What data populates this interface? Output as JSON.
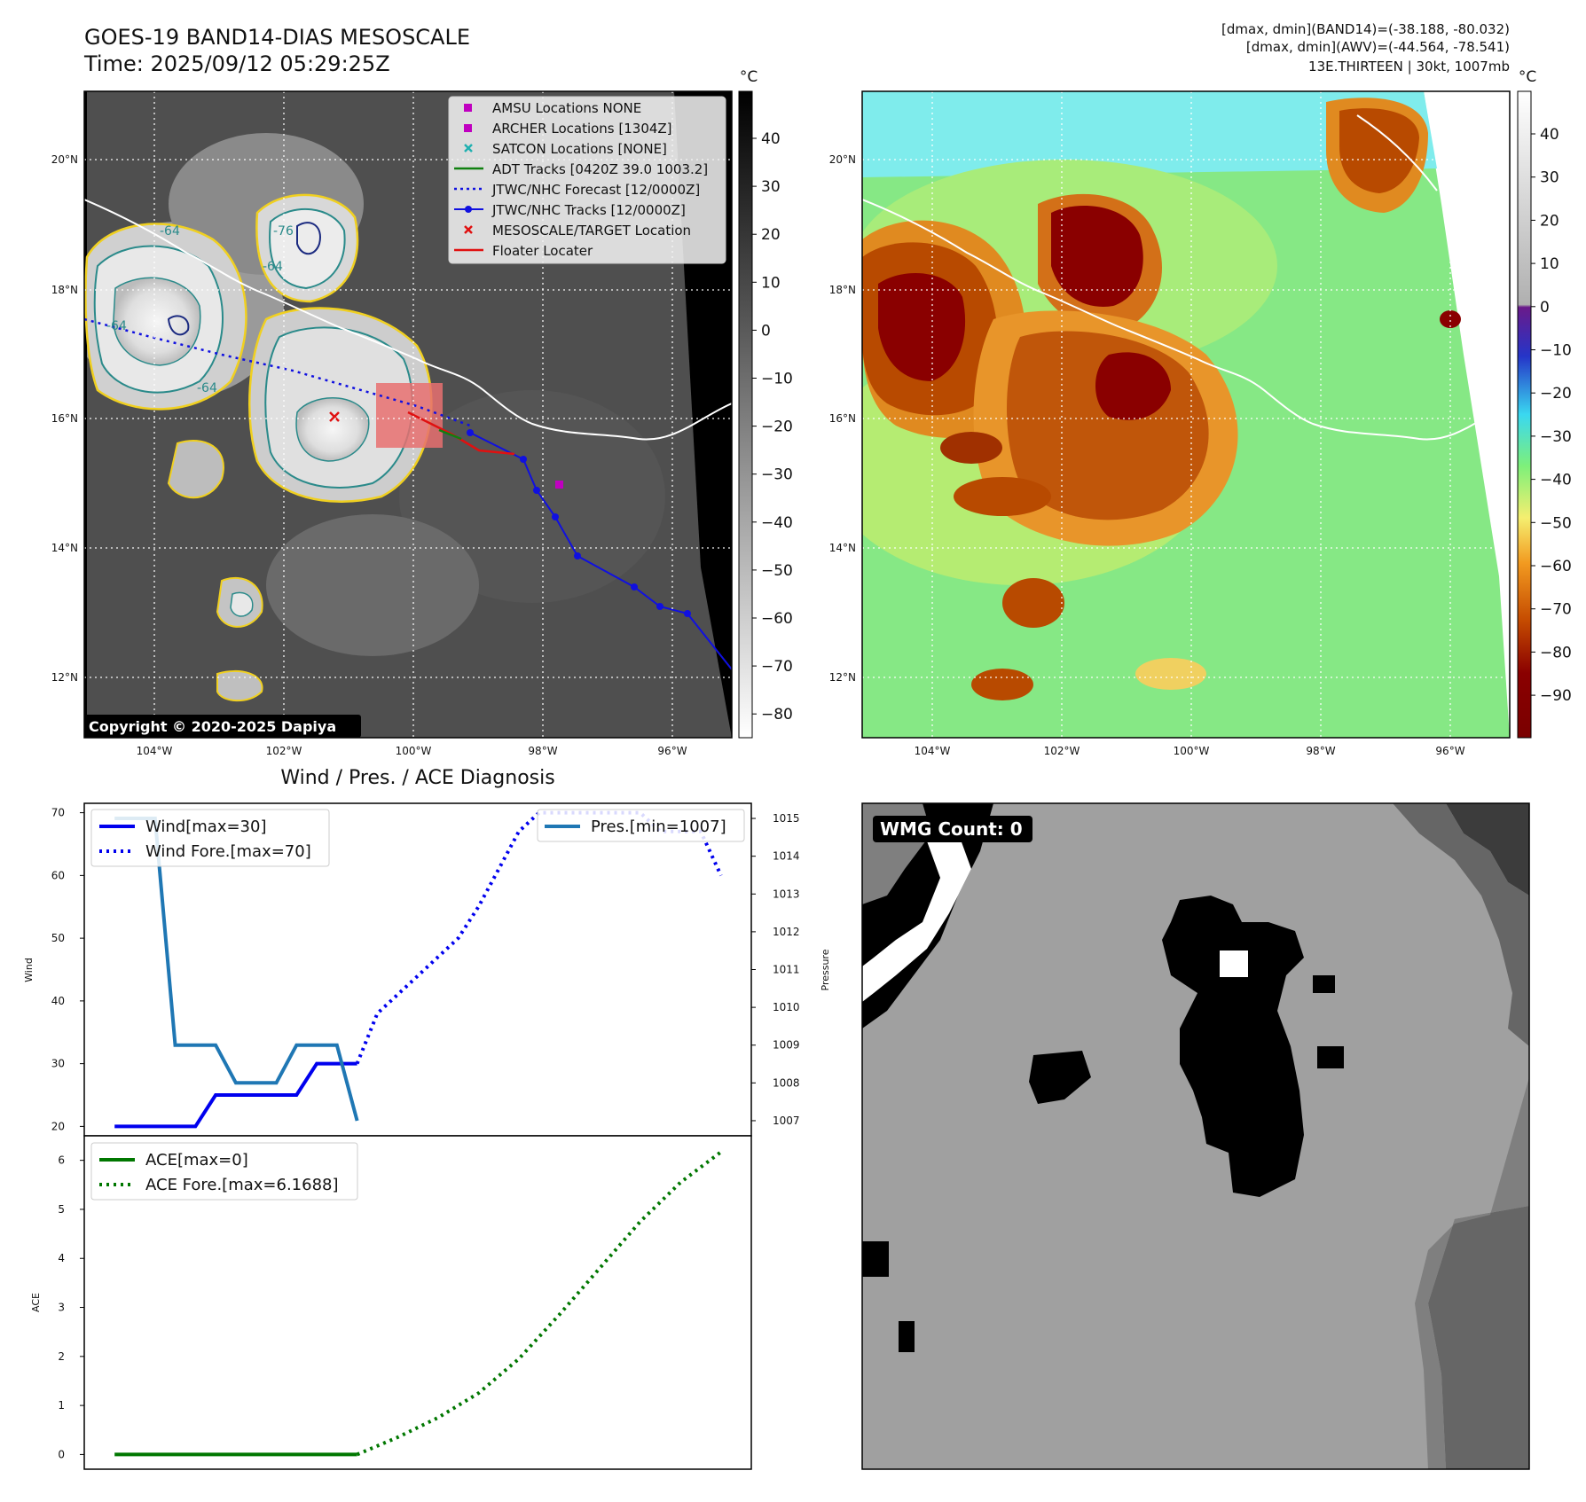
{
  "header": {
    "title": "GOES-19 BAND14-DIAS MESOSCALE",
    "time": "Time: 2025/09/12 05:29:25Z",
    "band_range": "[dmax, dmin](BAND14)=(-38.188, -80.032)",
    "awv_range": "[dmax, dmin](AWV)=(-44.564, -78.541)",
    "storm_info": "13E.THIRTEEN | 30kt, 1007mb"
  },
  "map_axes": {
    "lat_ticks": [
      "20°N",
      "18°N",
      "16°N",
      "14°N",
      "12°N"
    ],
    "lon_ticks": [
      "104°W",
      "102°W",
      "100°W",
      "98°W",
      "96°W"
    ]
  },
  "colorbar_left": {
    "unit": "°C",
    "ticks": [
      "40",
      "30",
      "20",
      "10",
      "0",
      "−10",
      "−20",
      "−30",
      "−40",
      "−50",
      "−60",
      "−70",
      "−80"
    ]
  },
  "colorbar_right": {
    "unit": "°C",
    "ticks": [
      "40",
      "30",
      "20",
      "10",
      "0",
      "−10",
      "−20",
      "−30",
      "−40",
      "−50",
      "−60",
      "−70",
      "−80",
      "−90"
    ]
  },
  "map_legend": {
    "items": [
      {
        "label": "AMSU Locations NONE",
        "color": "#c000c0",
        "marker": "square"
      },
      {
        "label": "ARCHER Locations [1304Z]",
        "color": "#c000c0",
        "marker": "square"
      },
      {
        "label": "SATCON Locations [NONE]",
        "color": "#20b0b0",
        "marker": "x"
      },
      {
        "label": "ADT Tracks [0420Z 39.0 1003.2]",
        "color": "#108010",
        "marker": "line"
      },
      {
        "label": "JTWC/NHC Forecast [12/0000Z]",
        "color": "#1010e0",
        "marker": "dotted"
      },
      {
        "label": "JTWC/NHC Tracks [12/0000Z]",
        "color": "#1010e0",
        "marker": "line-dot"
      },
      {
        "label": "MESOSCALE/TARGET Location",
        "color": "#e01010",
        "marker": "x"
      },
      {
        "label": "Floater Locater",
        "color": "#e01010",
        "marker": "line"
      }
    ]
  },
  "contour_labels": [
    "-64",
    "-64",
    "-64",
    "-76",
    "-64"
  ],
  "copyright": "Copyright © 2020-2025 Dapiya",
  "wmg_label": "WMG Count: 0",
  "chart_data": [
    {
      "type": "line",
      "title": "Wind / Pres. / ACE Diagnosis",
      "ylabel": "Wind",
      "ylabel_right": "Pressure",
      "ylim": [
        18.5,
        71.5
      ],
      "ylim_right": [
        1006.6,
        1015.4
      ],
      "yticks": [
        20,
        30,
        40,
        50,
        60,
        70
      ],
      "yticks_right": [
        1007,
        1008,
        1009,
        1010,
        1011,
        1012,
        1013,
        1014,
        1015
      ],
      "x": [
        0,
        1,
        2,
        3,
        4,
        5,
        6,
        7,
        8,
        9,
        10,
        11,
        12,
        13,
        14,
        15,
        16,
        17,
        18,
        19,
        20,
        21,
        22,
        23,
        24,
        25,
        26,
        27,
        28,
        29,
        30
      ],
      "xlim": [
        -1.5,
        31.5
      ],
      "series": [
        {
          "name": "Wind[max=30]",
          "axis": "left",
          "style": "solid",
          "color": "#0000ee",
          "x": [
            0,
            1,
            2,
            3,
            4,
            5,
            6,
            7,
            8,
            9,
            10,
            11,
            12
          ],
          "values": [
            20,
            20,
            20,
            20,
            20,
            25,
            25,
            25,
            25,
            25,
            30,
            30,
            30
          ]
        },
        {
          "name": "Wind Fore.[max=70]",
          "axis": "left",
          "style": "dotted",
          "color": "#0000ee",
          "x": [
            12,
            13,
            14,
            15,
            16,
            17,
            18,
            19,
            20,
            21,
            22,
            23,
            24,
            25,
            26,
            27,
            28,
            29,
            30
          ],
          "values": [
            30,
            38,
            41,
            44,
            47,
            50,
            55,
            61,
            67,
            70,
            70,
            70,
            70,
            70,
            70,
            67,
            67,
            67,
            60
          ]
        },
        {
          "name": "Pres.[min=1007]",
          "axis": "right",
          "style": "solid",
          "color": "#1f77b4",
          "x": [
            0,
            1,
            2,
            3,
            4,
            5,
            6,
            7,
            8,
            9,
            10,
            11,
            12
          ],
          "values": [
            1015,
            1015,
            1015,
            1009,
            1009,
            1009,
            1008,
            1008,
            1008,
            1009,
            1009,
            1009,
            1007
          ]
        }
      ]
    },
    {
      "type": "line",
      "ylabel": "ACE",
      "ylim": [
        -0.3,
        6.5
      ],
      "yticks": [
        0,
        1,
        2,
        3,
        4,
        5,
        6
      ],
      "xlim": [
        -1.5,
        31.5
      ],
      "series": [
        {
          "name": "ACE[max=0]",
          "style": "solid",
          "color": "#007700",
          "x": [
            0,
            1,
            2,
            3,
            4,
            5,
            6,
            7,
            8,
            9,
            10,
            11,
            12
          ],
          "values": [
            0,
            0,
            0,
            0,
            0,
            0,
            0,
            0,
            0,
            0,
            0,
            0,
            0
          ]
        },
        {
          "name": "ACE Fore.[max=6.1688]",
          "style": "dotted",
          "color": "#007700",
          "x": [
            12,
            14,
            16,
            18,
            20,
            22,
            24,
            26,
            28,
            30
          ],
          "values": [
            0,
            0.35,
            0.75,
            1.25,
            1.95,
            2.85,
            3.8,
            4.75,
            5.55,
            6.17
          ]
        }
      ]
    }
  ]
}
